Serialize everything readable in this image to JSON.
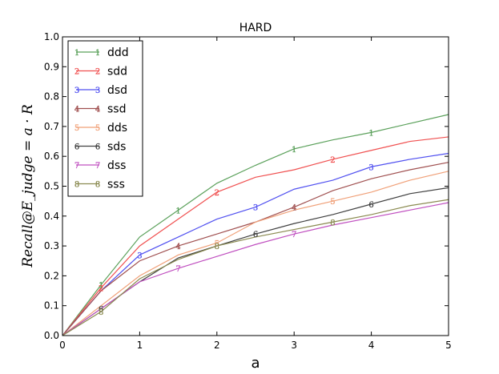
{
  "chart_data": {
    "type": "line",
    "title": "HARD",
    "xlabel": "a",
    "ylabel": "Recall@E_judge = a · R",
    "xlim": [
      0,
      5
    ],
    "ylim": [
      0.0,
      1.0
    ],
    "xticks": [
      "0",
      "1",
      "2",
      "3",
      "4",
      "5"
    ],
    "yticks": [
      "0.0",
      "0.1",
      "0.2",
      "0.3",
      "0.4",
      "0.5",
      "0.6",
      "0.7",
      "0.8",
      "0.9",
      "1.0"
    ],
    "grid": false,
    "legend_position": "top-left",
    "x": [
      0,
      0.5,
      1,
      1.5,
      2,
      2.5,
      3,
      3.5,
      4,
      4.5,
      5
    ],
    "series": [
      {
        "name": "ddd",
        "marker": "1",
        "color": "#5aa05a",
        "values": [
          0,
          0.17,
          0.33,
          0.42,
          0.51,
          0.57,
          0.625,
          0.655,
          0.68,
          0.71,
          0.74
        ]
      },
      {
        "name": "sdd",
        "marker": "2",
        "color": "#f05050",
        "values": [
          0,
          0.16,
          0.3,
          0.39,
          0.48,
          0.53,
          0.555,
          0.59,
          0.62,
          0.65,
          0.665
        ]
      },
      {
        "name": "dsd",
        "marker": "3",
        "color": "#5050f0",
        "values": [
          0,
          0.15,
          0.27,
          0.33,
          0.39,
          0.43,
          0.49,
          0.52,
          0.565,
          0.59,
          0.61
        ]
      },
      {
        "name": "ssd",
        "marker": "4",
        "color": "#a05050",
        "values": [
          0,
          0.15,
          0.25,
          0.3,
          0.34,
          0.38,
          0.43,
          0.485,
          0.525,
          0.555,
          0.58
        ]
      },
      {
        "name": "dds",
        "marker": "5",
        "color": "#f0a078",
        "values": [
          0,
          0.1,
          0.2,
          0.27,
          0.31,
          0.38,
          0.42,
          0.45,
          0.48,
          0.52,
          0.55
        ]
      },
      {
        "name": "sds",
        "marker": "6",
        "color": "#404040",
        "values": [
          0,
          0.09,
          0.18,
          0.26,
          0.3,
          0.34,
          0.375,
          0.405,
          0.44,
          0.475,
          0.495
        ]
      },
      {
        "name": "dss",
        "marker": "7",
        "color": "#c050c0",
        "values": [
          0,
          0.09,
          0.18,
          0.225,
          0.265,
          0.305,
          0.34,
          0.37,
          0.395,
          0.42,
          0.445
        ]
      },
      {
        "name": "sss",
        "marker": "8",
        "color": "#8a8a50",
        "values": [
          0,
          0.08,
          0.19,
          0.255,
          0.3,
          0.33,
          0.355,
          0.38,
          0.405,
          0.435,
          0.455
        ]
      }
    ]
  }
}
